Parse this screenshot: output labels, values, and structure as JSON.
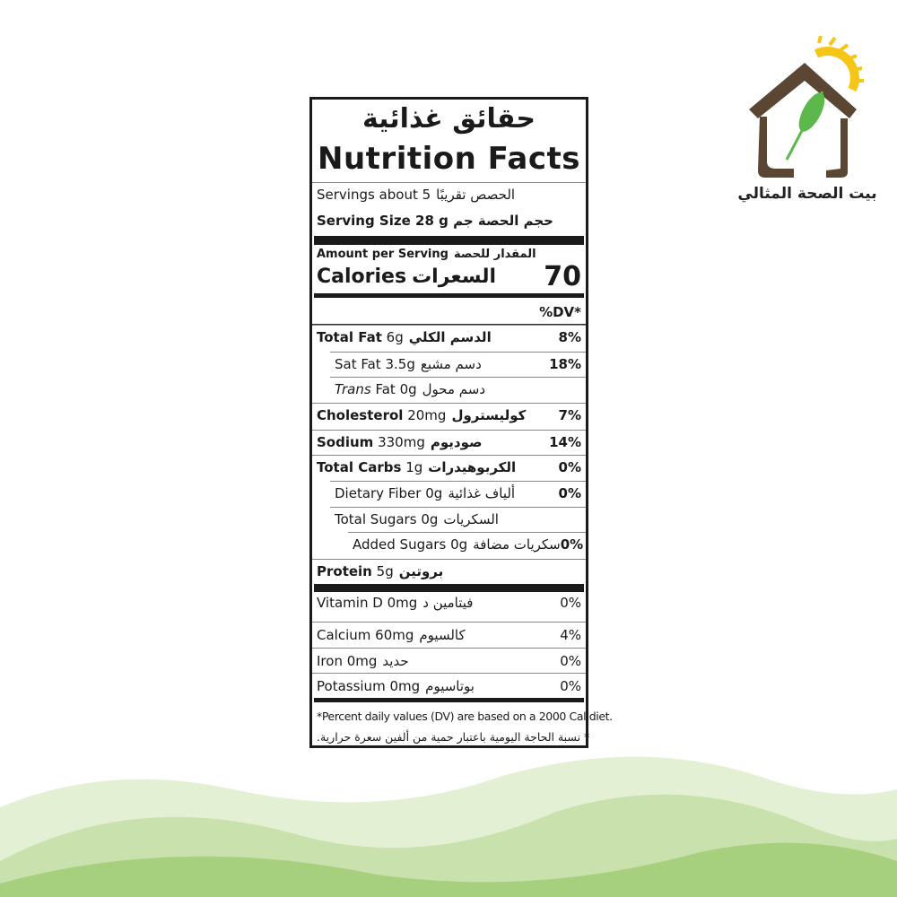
{
  "brand": {
    "name_ar": "بيت الصحة المثالي",
    "colors": {
      "house": "#5a4632",
      "sun": "#f5c518",
      "wheat": "#5cb84a"
    }
  },
  "colors": {
    "wave_light": "#dcebc8",
    "wave_mid": "#c2dea4",
    "wave_dark": "#9ccc74"
  },
  "label": {
    "title_ar": "حقائق غذائية",
    "title_en": "Nutrition Facts",
    "servings": {
      "en": "Servings about 5",
      "ar": "الحصص تقريبًا"
    },
    "serving_size": {
      "en": "Serving Size",
      "ar": "حجم الحصة",
      "value": "28 g",
      "unit_ar": "جم"
    },
    "amount_per_serving": {
      "en": "Amount per Serving",
      "ar": "المقدار للحصة"
    },
    "calories": {
      "en": "Calories",
      "ar": "السعرات",
      "value": "70"
    },
    "dv_header": "%DV*",
    "nutrients": [
      {
        "name": "Total Fat",
        "amount": "6g",
        "ar": "الدسم الكلي",
        "dv": "8%"
      },
      {
        "name": "Sat Fat",
        "amount": "3.5g",
        "ar": "دسم مشبع",
        "dv": "18%"
      },
      {
        "name": "Trans",
        "name2": "Fat",
        "amount": "0g",
        "ar": "دسم محول",
        "dv": ""
      },
      {
        "name": "Cholesterol",
        "amount": "20mg",
        "ar": "كوليسترول",
        "dv": "7%"
      },
      {
        "name": "Sodium",
        "amount": "330mg",
        "ar": "صوديوم",
        "dv": "14%"
      },
      {
        "name": "Total Carbs",
        "amount": "1g",
        "ar": "الكربوهيدرات",
        "dv": "0%"
      },
      {
        "name": "Dietary Fiber",
        "amount": "0g",
        "ar": "ألياف غذائية",
        "dv": "0%"
      },
      {
        "name": "Total Sugars",
        "amount": "0g",
        "ar": "السكريات",
        "dv": ""
      },
      {
        "name": "Added Sugars",
        "amount": "0g",
        "ar": "سكريات مضافة",
        "dv": "0%"
      },
      {
        "name": "Protein",
        "amount": "5g",
        "ar": "بروتين",
        "dv": ""
      }
    ],
    "vitamins": [
      {
        "name": "Vitamin D",
        "amount": "0mg",
        "ar": "فيتامين د",
        "dv": "0%"
      },
      {
        "name": "Calcium",
        "amount": "60mg",
        "ar": "كالسيوم",
        "dv": "4%"
      },
      {
        "name": "Iron",
        "amount": "0mg",
        "ar": "حديد",
        "dv": "0%"
      },
      {
        "name": "Potassium",
        "amount": "0mg",
        "ar": "بوتاسيوم",
        "dv": "0%"
      }
    ],
    "footnote_en": "*Percent daily values (DV) are based on a 2000 Cal diet.",
    "footnote_ar": "* نسبة الحاجة اليومية باعتبار حمية من ألفين سعرة حرارية."
  }
}
